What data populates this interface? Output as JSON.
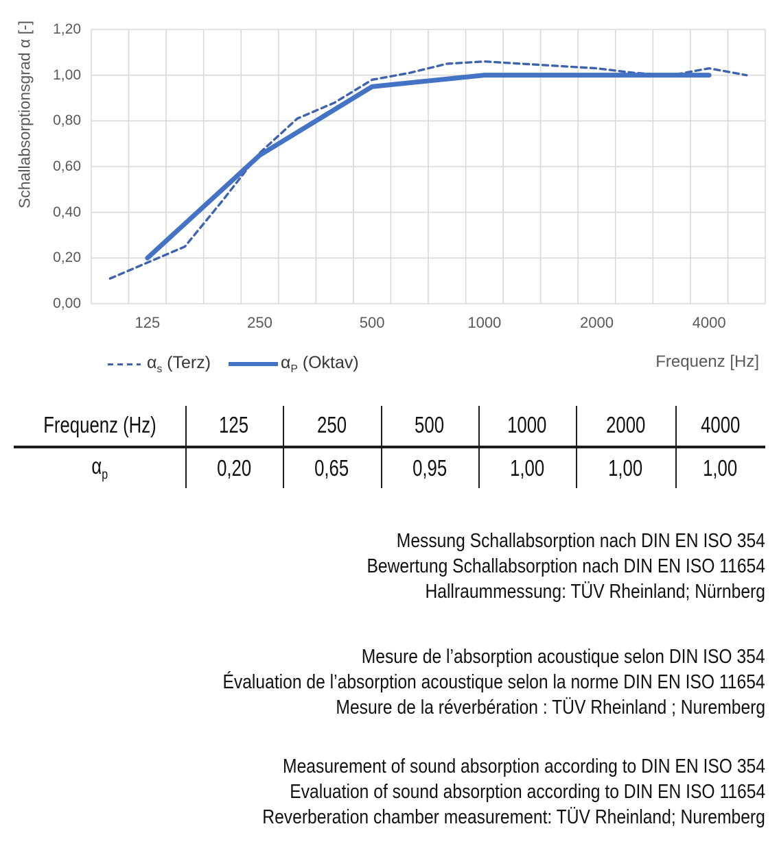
{
  "chart_data": {
    "type": "line",
    "title": "",
    "ylabel": "Schallabsorptionsgrad α [-]",
    "xlabel": "Frequenz [Hz]",
    "ylim": [
      0,
      1.2
    ],
    "ytick_step": 0.2,
    "ytick_labels": [
      "0,00",
      "0,20",
      "0,40",
      "0,60",
      "0,80",
      "1,00",
      "1,20"
    ],
    "grid": true,
    "legend_position": "bottom-left",
    "x_bands": [
      100,
      125,
      160,
      200,
      250,
      315,
      400,
      500,
      630,
      800,
      1000,
      1250,
      1600,
      2000,
      2500,
      3150,
      4000,
      5000
    ],
    "xtick_labels": [
      "125",
      "250",
      "500",
      "1000",
      "2000",
      "4000"
    ],
    "series": [
      {
        "name": "αs (Terz)",
        "style": "dashed",
        "x": [
          100,
          125,
          160,
          200,
          250,
          315,
          400,
          500,
          630,
          800,
          1000,
          1250,
          1600,
          2000,
          2500,
          3150,
          4000,
          5000
        ],
        "values": [
          0.11,
          0.18,
          0.25,
          0.45,
          0.66,
          0.81,
          0.88,
          0.98,
          1.01,
          1.05,
          1.06,
          1.05,
          1.04,
          1.03,
          1.01,
          1.0,
          1.03,
          1.0
        ]
      },
      {
        "name": "αP (Oktav)",
        "style": "solid",
        "x": [
          125,
          250,
          500,
          1000,
          2000,
          4000
        ],
        "values": [
          0.2,
          0.65,
          0.95,
          1.0,
          1.0,
          1.0
        ]
      }
    ]
  },
  "legend": {
    "items": [
      {
        "symbol": "α",
        "sub": "s",
        "label": " (Terz)",
        "style": "dashed"
      },
      {
        "symbol": "α",
        "sub": "P",
        "label": " (Oktav)",
        "style": "solid"
      }
    ]
  },
  "axis": {
    "y_title": "Schallabsorptionsgrad α [-]",
    "x_title": "Frequenz [Hz]"
  },
  "table": {
    "header_label": "Frequenz (Hz)",
    "columns": [
      "125",
      "250",
      "500",
      "1000",
      "2000",
      "4000"
    ],
    "row_symbol": "α",
    "row_sub": "p",
    "values": [
      "0,20",
      "0,65",
      "0,95",
      "1,00",
      "1,00",
      "1,00"
    ]
  },
  "notes": {
    "german": [
      "Messung Schallabsorption nach DIN EN ISO 354",
      "Bewertung Schallabsorption nach DIN EN ISO 11654",
      "Hallraummessung: TÜV Rheinland; Nürnberg"
    ],
    "french": [
      "Mesure de l’absorption acoustique selon DIN ISO 354",
      "Évaluation de l’absorption acoustique selon la norme DIN EN ISO 11654",
      "Mesure de la réverbération : TÜV Rheinland ; Nuremberg"
    ],
    "english": [
      "Measurement of sound absorption according to DIN EN ISO 354",
      "Evaluation of sound absorption according to DIN EN ISO 11654",
      "Reverberation chamber measurement: TÜV Rheinland; Nuremberg"
    ]
  },
  "colors": {
    "line_solid": "#4472C4",
    "line_dashed": "#3D63AE",
    "grid": "#D9D9D9",
    "axis_text": "#595959"
  }
}
